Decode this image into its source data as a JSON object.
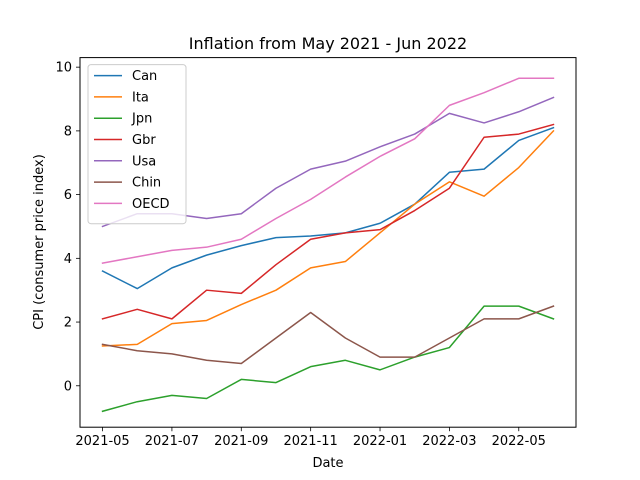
{
  "chart_data": {
    "type": "line",
    "title": "Inflation from May 2021 - Jun 2022",
    "xlabel": "Date",
    "ylabel": "CPI (consumer price index)",
    "x": [
      "2021-05",
      "2021-06",
      "2021-07",
      "2021-08",
      "2021-09",
      "2021-10",
      "2021-11",
      "2021-12",
      "2022-01",
      "2022-02",
      "2022-03",
      "2022-04",
      "2022-05",
      "2022-06"
    ],
    "x_tick_labels": [
      "2021-05",
      "2021-07",
      "2021-09",
      "2021-11",
      "2022-01",
      "2022-03",
      "2022-05"
    ],
    "y_ticks": [
      0,
      2,
      4,
      6,
      8,
      10
    ],
    "ylim": [
      -1.3,
      10.3
    ],
    "grid": false,
    "legend_position": "top-left",
    "series": [
      {
        "name": "Can",
        "color": "#1f77b4",
        "values": [
          3.6,
          3.05,
          3.7,
          4.1,
          4.4,
          4.65,
          4.7,
          4.8,
          5.1,
          5.7,
          6.7,
          6.8,
          7.7,
          8.1
        ]
      },
      {
        "name": "Ita",
        "color": "#ff7f0e",
        "values": [
          1.25,
          1.3,
          1.95,
          2.05,
          2.55,
          3.0,
          3.7,
          3.9,
          4.8,
          5.7,
          6.4,
          5.95,
          6.85,
          8.0
        ]
      },
      {
        "name": "Jpn",
        "color": "#2ca02c",
        "values": [
          -0.8,
          -0.5,
          -0.3,
          -0.4,
          0.2,
          0.1,
          0.6,
          0.8,
          0.5,
          0.9,
          1.2,
          2.5,
          2.5,
          2.1
        ]
      },
      {
        "name": "Gbr",
        "color": "#d62728",
        "values": [
          2.1,
          2.4,
          2.1,
          3.0,
          2.9,
          3.8,
          4.6,
          4.8,
          4.9,
          5.5,
          6.2,
          7.8,
          7.9,
          8.2
        ]
      },
      {
        "name": "Usa",
        "color": "#9467bd",
        "values": [
          5.0,
          5.4,
          5.4,
          5.25,
          5.4,
          6.2,
          6.8,
          7.05,
          7.5,
          7.9,
          8.55,
          8.25,
          8.6,
          9.05
        ]
      },
      {
        "name": "Chin",
        "color": "#8c564b",
        "values": [
          1.3,
          1.1,
          1.0,
          0.8,
          0.7,
          1.5,
          2.3,
          1.5,
          0.9,
          0.9,
          1.5,
          2.1,
          2.1,
          2.5
        ]
      },
      {
        "name": "OECD",
        "color": "#e377c2",
        "values": [
          3.85,
          4.05,
          4.25,
          4.35,
          4.6,
          5.25,
          5.85,
          6.55,
          7.2,
          7.75,
          8.8,
          9.2,
          9.65,
          9.65
        ]
      }
    ]
  }
}
